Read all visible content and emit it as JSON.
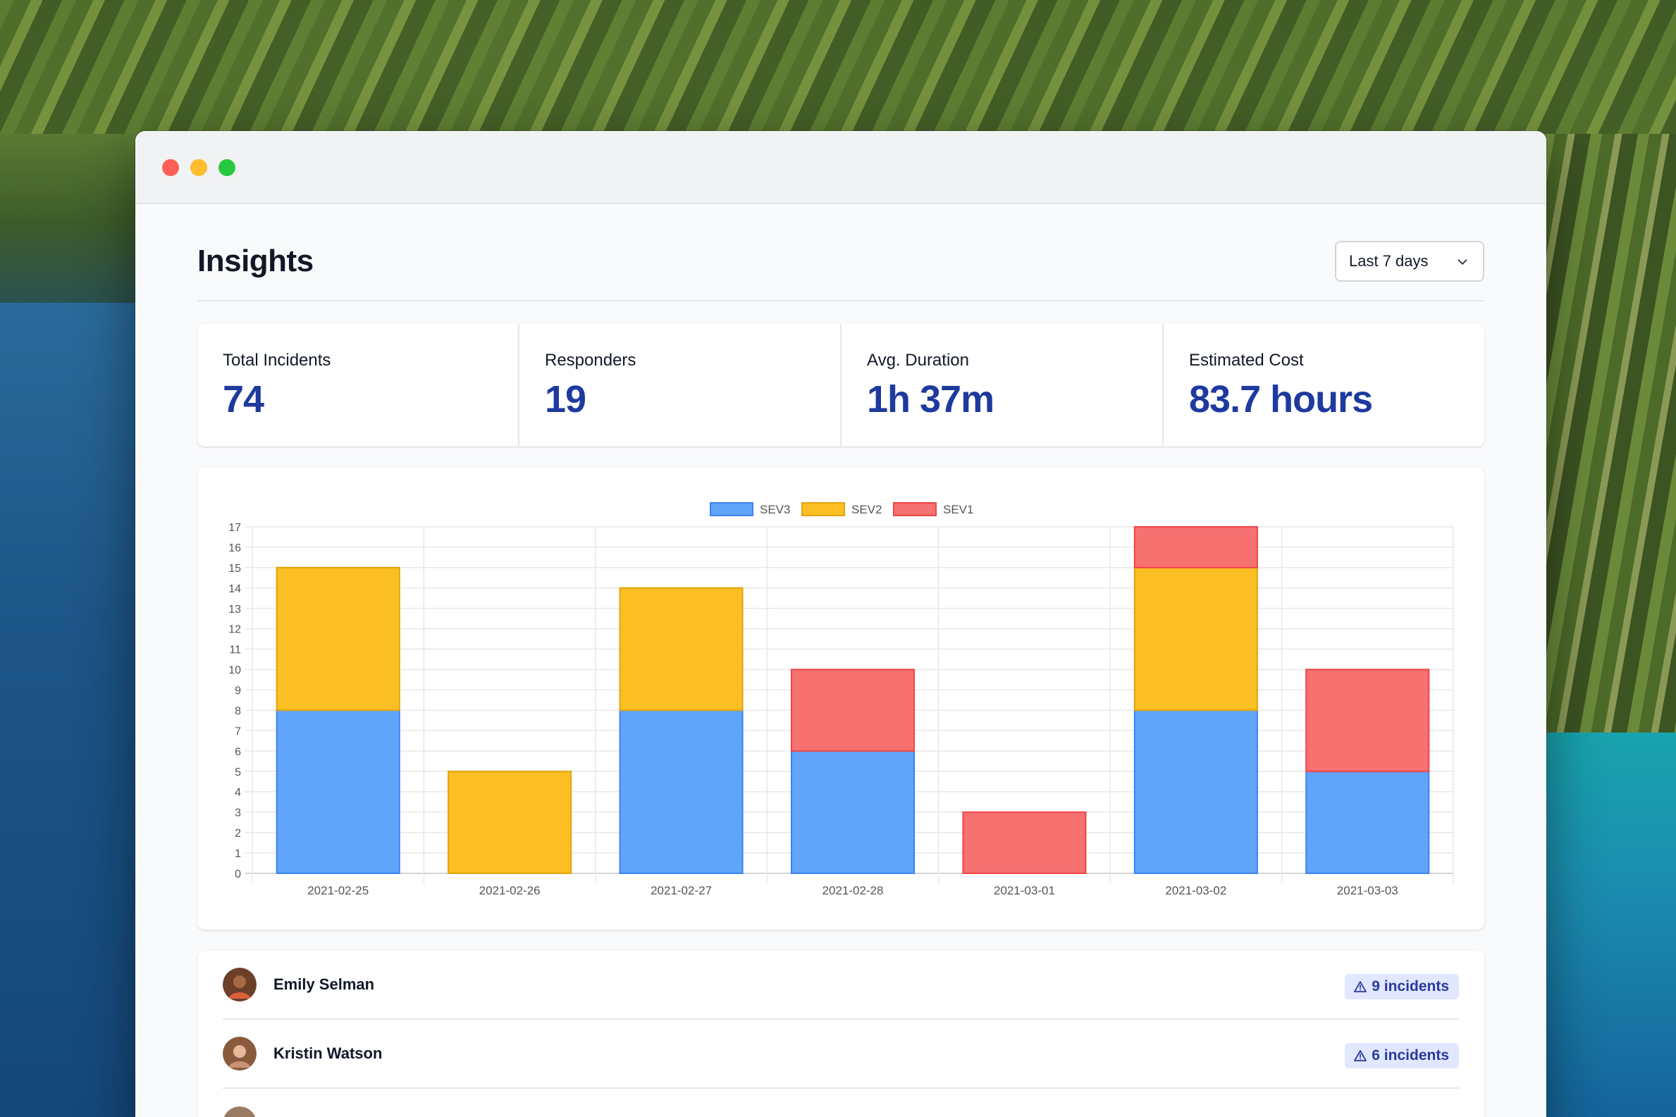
{
  "page": {
    "title": "Insights"
  },
  "range": {
    "selected": "Last 7 days"
  },
  "stats": [
    {
      "label": "Total Incidents",
      "value": "74"
    },
    {
      "label": "Responders",
      "value": "19"
    },
    {
      "label": "Avg. Duration",
      "value": "1h 37m"
    },
    {
      "label": "Estimated Cost",
      "value": "83.7 hours"
    }
  ],
  "colors": {
    "SEV3": "#60a5fa",
    "SEV2": "#fbbf24",
    "SEV1": "#f87171",
    "accent": "#1e3a9e"
  },
  "chart_data": {
    "type": "bar",
    "stacked": true,
    "legend": "top",
    "grid": true,
    "ylim": [
      0,
      17
    ],
    "categories": [
      "2021-02-25",
      "2021-02-26",
      "2021-02-27",
      "2021-02-28",
      "2021-03-01",
      "2021-03-02",
      "2021-03-03"
    ],
    "series": [
      {
        "name": "SEV3",
        "values": [
          8,
          0,
          8,
          6,
          0,
          8,
          5
        ]
      },
      {
        "name": "SEV2",
        "values": [
          7,
          5,
          6,
          0,
          0,
          7,
          0
        ]
      },
      {
        "name": "SEV1",
        "values": [
          0,
          0,
          0,
          4,
          3,
          2,
          5
        ]
      }
    ]
  },
  "responders": [
    {
      "name": "Emily Selman",
      "incidents": "9 incidents"
    },
    {
      "name": "Kristin Watson",
      "incidents": "6 incidents"
    }
  ]
}
